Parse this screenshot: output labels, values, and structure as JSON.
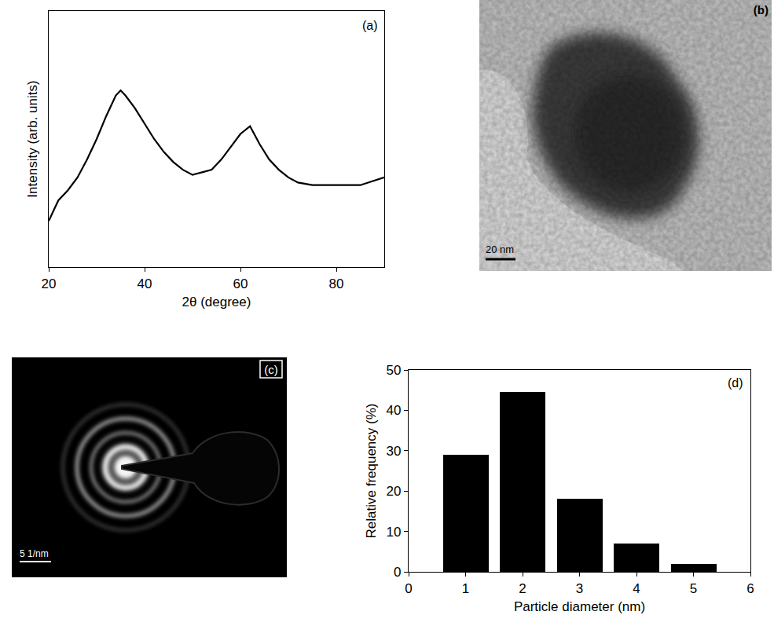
{
  "chart_data": [
    {
      "type": "line",
      "panel": "(a)",
      "x_label": "2θ (degree)",
      "y_label": "Intensity (arb. units)",
      "x": [
        20,
        22,
        24,
        26,
        28,
        30,
        32,
        34,
        35,
        36,
        38,
        40,
        42,
        44,
        46,
        48,
        50,
        52,
        54,
        56,
        58,
        60,
        62,
        64,
        66,
        68,
        70,
        72,
        75,
        80,
        85,
        90
      ],
      "values": [
        18,
        26,
        30,
        35,
        42,
        50,
        59,
        67,
        69,
        67,
        62,
        56,
        50,
        45,
        41,
        38,
        36,
        37,
        38,
        42,
        47,
        52,
        55,
        48,
        42,
        38,
        35,
        33,
        32,
        32,
        32,
        35
      ],
      "color": "#000000",
      "xlim": [
        20,
        90
      ],
      "xticks": [
        20,
        40,
        60,
        80
      ],
      "ylim": [
        0,
        100
      ],
      "yticks": [],
      "tick_labels": "x"
    },
    {
      "type": "micrograph",
      "panel": "(b)",
      "scale_bar": "20 nm"
    },
    {
      "type": "diffraction",
      "panel": "(c)",
      "scale_bar": "5 1/nm"
    },
    {
      "type": "bar",
      "panel": "(d)",
      "x_label": "Particle diameter (nm)",
      "y_label": "Relative frequency (%)",
      "x": [
        1,
        2,
        3,
        4,
        5
      ],
      "values": [
        29,
        44.5,
        18,
        7,
        2
      ],
      "color": "#000000",
      "xlim": [
        0,
        6
      ],
      "xticks": [
        0,
        1,
        2,
        3,
        4,
        5,
        6
      ],
      "ylim": [
        0,
        50
      ],
      "yticks": [
        0,
        10,
        20,
        30,
        40,
        50
      ]
    }
  ]
}
